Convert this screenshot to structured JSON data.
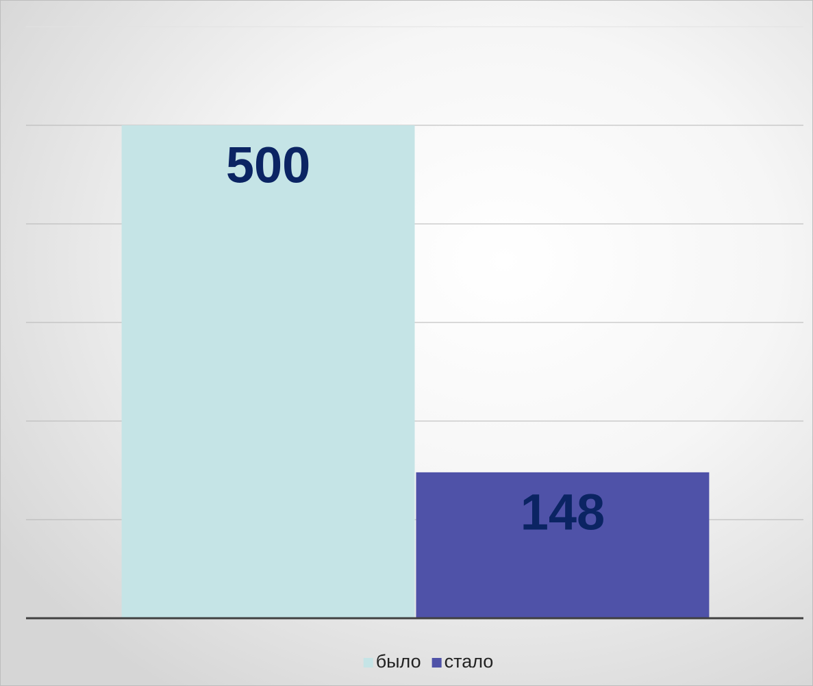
{
  "chart_data": {
    "type": "bar",
    "categories": [
      null
    ],
    "series": [
      {
        "name": "было",
        "color": "#c5e4e6",
        "values": [
          500
        ]
      },
      {
        "name": "стало",
        "color": "#4f52a8",
        "values": [
          148
        ]
      }
    ],
    "ylim": [
      0,
      600
    ],
    "yticks": [
      0,
      100,
      200,
      300,
      400,
      500,
      600
    ],
    "grid": true,
    "legend": "bottom",
    "value_label_color": "#0b2463"
  }
}
